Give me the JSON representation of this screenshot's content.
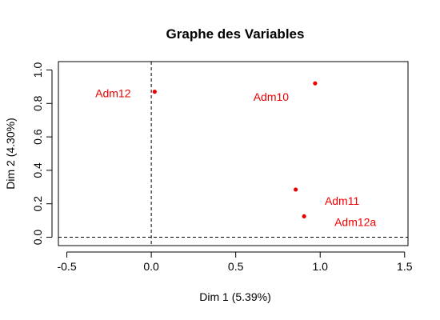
{
  "chart_data": {
    "type": "scatter",
    "title": "Graphe des Variables",
    "xlabel": "Dim 1 (5.39%)",
    "ylabel": "Dim 2 (4.30%)",
    "xlim": [
      -0.55,
      1.52
    ],
    "ylim": [
      -0.05,
      1.05
    ],
    "xticks": [
      "-0.5",
      "0.0",
      "0.5",
      "1.0",
      "1.5"
    ],
    "yticks": [
      "0.0",
      "0.2",
      "0.4",
      "0.6",
      "0.8",
      "1.0"
    ],
    "points": [
      {
        "label": "Adm12",
        "x": 0.02,
        "y": 0.87
      },
      {
        "label": "Adm10",
        "x": 0.97,
        "y": 0.92
      },
      {
        "label": "Adm11",
        "x": 0.855,
        "y": 0.285
      },
      {
        "label": "Adm12a",
        "x": 0.905,
        "y": 0.125
      }
    ],
    "point_color": "#ee0000",
    "reference_lines": {
      "x": 0,
      "y": 0,
      "style": "dashed"
    },
    "grid": false,
    "legend": "none"
  }
}
